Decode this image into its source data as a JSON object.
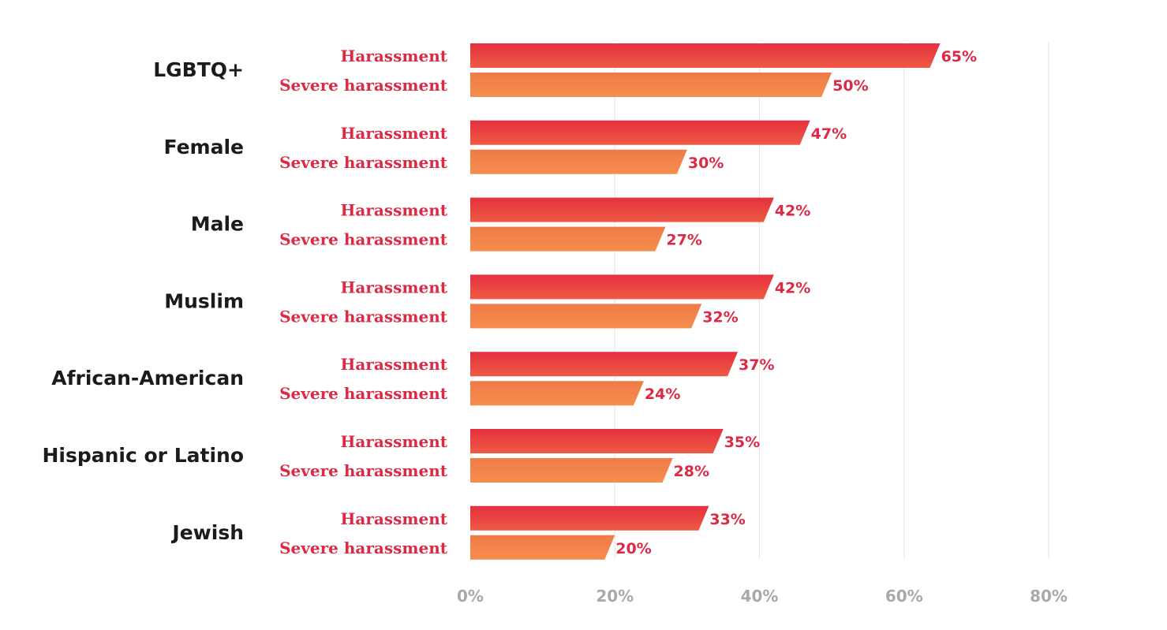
{
  "chart_data": {
    "type": "bar",
    "orientation": "horizontal",
    "categories": [
      "LGBTQ+",
      "Female",
      "Male",
      "Muslim",
      "African-American",
      "Hispanic or Latino",
      "Jewish"
    ],
    "series": [
      {
        "name": "Harassment",
        "values": [
          65,
          47,
          42,
          42,
          37,
          35,
          33
        ],
        "color": "#e8383f"
      },
      {
        "name": "Severe harassment",
        "values": [
          50,
          30,
          27,
          32,
          24,
          28,
          20
        ],
        "color": "#f3834a"
      }
    ],
    "value_suffix": "%",
    "xlim": [
      0,
      80
    ],
    "xticks": [
      0,
      20,
      40,
      60,
      80
    ],
    "xtick_labels": [
      "0%",
      "20%",
      "40%",
      "60%",
      "80%"
    ],
    "grid": "vertical",
    "legend": "none",
    "title": "",
    "xlabel": "",
    "ylabel": ""
  }
}
